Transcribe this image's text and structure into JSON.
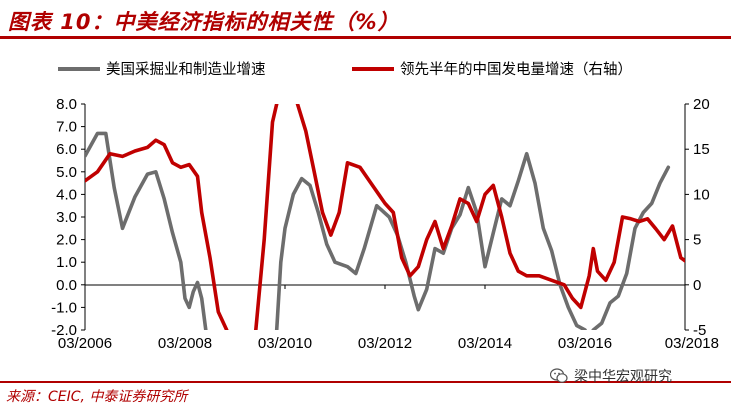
{
  "header": {
    "title": "图表 10：中美经济指标的相关性（%）"
  },
  "footer": {
    "source": "来源：CEIC, 中泰证券研究所",
    "watermark": "梁中华宏观研究"
  },
  "colors": {
    "accent": "#b00000",
    "gray_series": "#6d6d6d",
    "red_series": "#c00000"
  },
  "icons": {
    "watermark": "wechat-icon"
  },
  "chart_data": {
    "type": "line",
    "title": "",
    "grid": false,
    "legend_position": "top",
    "x_ticks": [
      "03/2006",
      "03/2008",
      "03/2010",
      "03/2012",
      "03/2014",
      "03/2016",
      "03/2018"
    ],
    "xlim": [
      "2006-03",
      "2018-03"
    ],
    "y_left": {
      "ylim": [
        -2.0,
        8.0
      ],
      "ticks": [
        "8.0",
        "7.0",
        "6.0",
        "5.0",
        "4.0",
        "3.0",
        "2.0",
        "1.0",
        "0.0",
        "-1.0",
        "-2.0"
      ]
    },
    "y_right": {
      "ylim": [
        -5,
        20
      ],
      "ticks": [
        "20",
        "15",
        "10",
        "5",
        "0",
        "-5"
      ]
    },
    "series": [
      {
        "name": "美国采掘业和制造业增速",
        "axis": "left",
        "points": [
          [
            "2006-03",
            5.7
          ],
          [
            "2006-06",
            6.7
          ],
          [
            "2006-08",
            6.7
          ],
          [
            "2006-10",
            4.3
          ],
          [
            "2006-12",
            2.5
          ],
          [
            "2007-03",
            3.9
          ],
          [
            "2007-06",
            4.9
          ],
          [
            "2007-08",
            5.0
          ],
          [
            "2007-10",
            3.8
          ],
          [
            "2007-12",
            2.3
          ],
          [
            "2008-02",
            1.0
          ],
          [
            "2008-03",
            -0.6
          ],
          [
            "2008-04",
            -1.0
          ],
          [
            "2008-05",
            -0.3
          ],
          [
            "2008-06",
            0.1
          ],
          [
            "2008-07",
            -0.6
          ],
          [
            "2008-08",
            -2.0
          ]
        ]
      },
      {
        "name": "美国采掘业和制造业增速",
        "axis": "left",
        "points": [
          [
            "2010-01",
            -2.0
          ],
          [
            "2010-02",
            1.0
          ],
          [
            "2010-03",
            2.5
          ],
          [
            "2010-05",
            4.0
          ],
          [
            "2010-07",
            4.7
          ],
          [
            "2010-09",
            4.4
          ],
          [
            "2010-11",
            3.2
          ],
          [
            "2011-01",
            1.8
          ],
          [
            "2011-03",
            1.0
          ],
          [
            "2011-06",
            0.8
          ],
          [
            "2011-08",
            0.5
          ],
          [
            "2011-10",
            1.6
          ],
          [
            "2012-01",
            3.5
          ],
          [
            "2012-04",
            3.0
          ],
          [
            "2012-06",
            2.2
          ],
          [
            "2012-08",
            1.0
          ],
          [
            "2012-10",
            -0.5
          ],
          [
            "2012-11",
            -1.1
          ],
          [
            "2013-01",
            -0.2
          ],
          [
            "2013-03",
            1.6
          ],
          [
            "2013-05",
            1.4
          ],
          [
            "2013-07",
            2.5
          ],
          [
            "2013-09",
            3.1
          ],
          [
            "2013-11",
            4.3
          ],
          [
            "2014-01",
            3.2
          ],
          [
            "2014-03",
            0.8
          ],
          [
            "2014-05",
            2.3
          ],
          [
            "2014-07",
            3.8
          ],
          [
            "2014-09",
            3.5
          ],
          [
            "2014-11",
            4.6
          ],
          [
            "2015-01",
            5.8
          ],
          [
            "2015-03",
            4.5
          ],
          [
            "2015-05",
            2.5
          ],
          [
            "2015-07",
            1.5
          ],
          [
            "2015-09",
            0.0
          ],
          [
            "2015-11",
            -1.0
          ],
          [
            "2016-01",
            -1.8
          ],
          [
            "2016-03",
            -2.0
          ]
        ]
      },
      {
        "name": "美国采掘业和制造业增速",
        "axis": "left",
        "points": [
          [
            "2016-05",
            -2.0
          ],
          [
            "2016-07",
            -1.7
          ],
          [
            "2016-09",
            -0.8
          ],
          [
            "2016-11",
            -0.5
          ],
          [
            "2017-01",
            0.5
          ],
          [
            "2017-03",
            2.5
          ],
          [
            "2017-05",
            3.2
          ],
          [
            "2017-07",
            3.6
          ],
          [
            "2017-09",
            4.5
          ],
          [
            "2017-11",
            5.2
          ]
        ]
      },
      {
        "name": "领先半年的中国发电量增速（右轴）",
        "axis": "right",
        "points": [
          [
            "2006-03",
            11.5
          ],
          [
            "2006-06",
            12.5
          ],
          [
            "2006-09",
            14.5
          ],
          [
            "2006-12",
            14.2
          ],
          [
            "2007-03",
            14.8
          ],
          [
            "2007-06",
            15.2
          ],
          [
            "2007-08",
            16.0
          ],
          [
            "2007-10",
            15.5
          ],
          [
            "2007-12",
            13.5
          ],
          [
            "2008-02",
            13.0
          ],
          [
            "2008-04",
            13.3
          ],
          [
            "2008-06",
            12.0
          ],
          [
            "2008-07",
            8.0
          ],
          [
            "2008-09",
            3.0
          ],
          [
            "2008-11",
            -3.0
          ],
          [
            "2009-01",
            -5.0
          ]
        ]
      },
      {
        "name": "领先半年的中国发电量增速（右轴）",
        "axis": "right",
        "points": [
          [
            "2009-08",
            -5.0
          ],
          [
            "2009-10",
            5.0
          ],
          [
            "2009-12",
            18.0
          ],
          [
            "2010-01",
            20.0
          ]
        ]
      },
      {
        "name": "领先半年的中国发电量增速（右轴）",
        "axis": "right",
        "points": [
          [
            "2010-06",
            20.0
          ],
          [
            "2010-08",
            17.0
          ],
          [
            "2010-10",
            12.5
          ],
          [
            "2010-12",
            8.0
          ],
          [
            "2011-02",
            5.5
          ],
          [
            "2011-04",
            8.0
          ],
          [
            "2011-06",
            13.5
          ],
          [
            "2011-09",
            13.0
          ],
          [
            "2011-12",
            11.0
          ],
          [
            "2012-03",
            9.0
          ],
          [
            "2012-05",
            8.0
          ],
          [
            "2012-07",
            3.0
          ],
          [
            "2012-09",
            1.0
          ],
          [
            "2012-11",
            2.0
          ],
          [
            "2013-01",
            5.0
          ],
          [
            "2013-03",
            7.0
          ],
          [
            "2013-05",
            4.0
          ],
          [
            "2013-07",
            6.5
          ],
          [
            "2013-09",
            9.5
          ],
          [
            "2013-11",
            9.0
          ],
          [
            "2014-01",
            7.0
          ],
          [
            "2014-03",
            10.0
          ],
          [
            "2014-05",
            11.0
          ],
          [
            "2014-07",
            7.5
          ],
          [
            "2014-09",
            3.5
          ],
          [
            "2014-11",
            1.5
          ],
          [
            "2015-01",
            1.0
          ],
          [
            "2015-04",
            1.0
          ],
          [
            "2015-07",
            0.5
          ],
          [
            "2015-10",
            0.0
          ],
          [
            "2015-12",
            -1.5
          ],
          [
            "2016-02",
            -2.5
          ],
          [
            "2016-04",
            1.0
          ],
          [
            "2016-05",
            4.0
          ],
          [
            "2016-06",
            1.5
          ],
          [
            "2016-08",
            0.5
          ],
          [
            "2016-10",
            2.5
          ],
          [
            "2016-12",
            7.5
          ],
          [
            "2017-02",
            7.3
          ],
          [
            "2017-04",
            7.0
          ],
          [
            "2017-06",
            7.3
          ],
          [
            "2017-08",
            6.2
          ],
          [
            "2017-10",
            5.0
          ],
          [
            "2017-12",
            6.5
          ],
          [
            "2018-02",
            3.0
          ],
          [
            "2018-05",
            2.0
          ]
        ]
      }
    ]
  }
}
